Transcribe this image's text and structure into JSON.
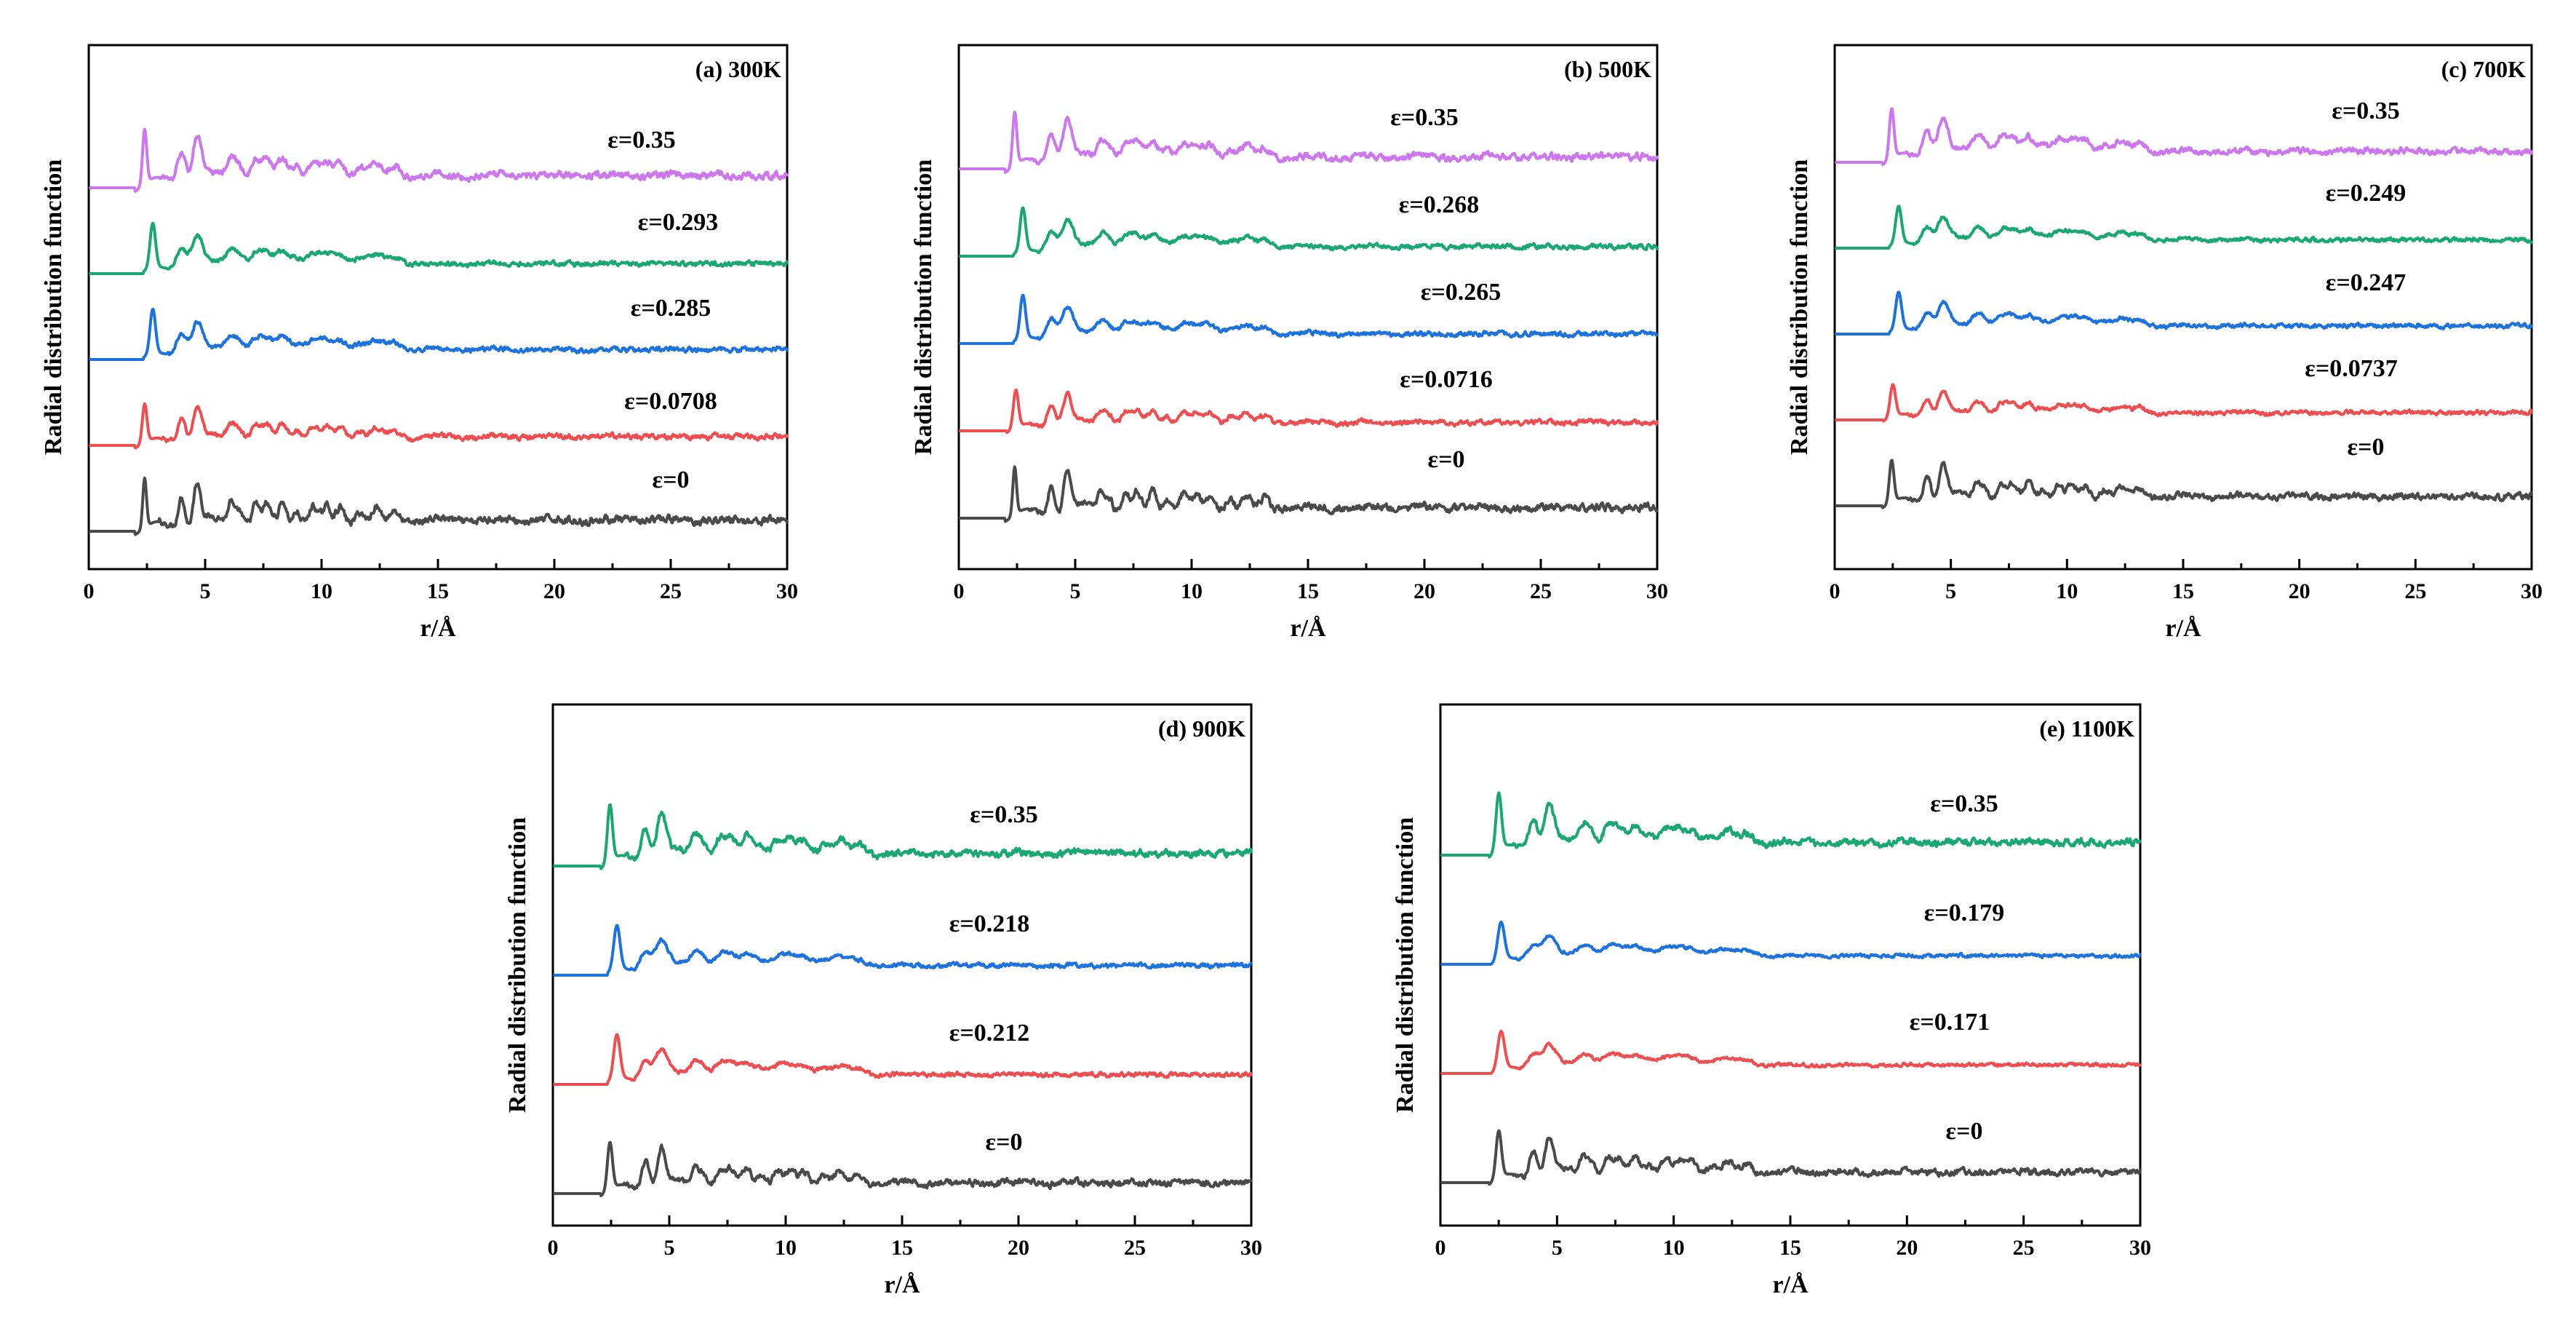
{
  "colors": {
    "purple": "#cc77ee",
    "green": "#19a872",
    "blue": "#1c72de",
    "red": "#ef4d4f",
    "gray": "#4a4a4a"
  },
  "chart_data": [
    {
      "type": "line",
      "id": "a",
      "title": "(a) 300K",
      "xlabel": "r/Å",
      "ylabel": "Radial distribution function",
      "xlim": [
        0,
        30
      ],
      "xticks": [
        "0",
        "5",
        "10",
        "15",
        "20",
        "25",
        "30"
      ],
      "series": [
        {
          "name": "ε=0",
          "color": "#4a4a4a",
          "offset": 0,
          "first_peak_r": 2.4,
          "first_peak_height": 1.0,
          "sharpness": 1.0,
          "disorder": 0.1
        },
        {
          "name": "ε=0.0708",
          "color": "#ef4d4f",
          "offset": 1,
          "first_peak_r": 2.4,
          "first_peak_height": 0.78,
          "sharpness": 0.9,
          "disorder": 0.3
        },
        {
          "name": "ε=0.285",
          "color": "#1c72de",
          "offset": 2,
          "first_peak_r": 2.75,
          "first_peak_height": 0.9,
          "sharpness": 0.8,
          "disorder": 0.6
        },
        {
          "name": "ε=0.293",
          "color": "#19a872",
          "offset": 3,
          "first_peak_r": 2.75,
          "first_peak_height": 0.9,
          "sharpness": 0.8,
          "disorder": 0.6
        },
        {
          "name": "ε=0.35",
          "color": "#cc77ee",
          "offset": 4,
          "first_peak_r": 2.4,
          "first_peak_height": 1.1,
          "sharpness": 0.95,
          "disorder": 0.35
        }
      ]
    },
    {
      "type": "line",
      "id": "b",
      "title": "(b) 500K",
      "xlabel": "r/Å",
      "ylabel": "Radial distribution function",
      "xlim": [
        0,
        30
      ],
      "xticks": [
        "0",
        "5",
        "10",
        "15",
        "20",
        "25",
        "30"
      ],
      "series": [
        {
          "name": "ε=0",
          "color": "#4a4a4a",
          "offset": 0,
          "first_peak_r": 2.4,
          "first_peak_height": 0.95,
          "sharpness": 1.0,
          "disorder": 0.12
        },
        {
          "name": "ε=0.0716",
          "color": "#ef4d4f",
          "offset": 1,
          "first_peak_r": 2.45,
          "first_peak_height": 0.75,
          "sharpness": 0.85,
          "disorder": 0.35
        },
        {
          "name": "ε=0.265",
          "color": "#1c72de",
          "offset": 2,
          "first_peak_r": 2.75,
          "first_peak_height": 0.85,
          "sharpness": 0.8,
          "disorder": 0.6
        },
        {
          "name": "ε=0.268",
          "color": "#19a872",
          "offset": 3,
          "first_peak_r": 2.75,
          "first_peak_height": 0.85,
          "sharpness": 0.8,
          "disorder": 0.6
        },
        {
          "name": "ε=0.35",
          "color": "#cc77ee",
          "offset": 4,
          "first_peak_r": 2.4,
          "first_peak_height": 1.05,
          "sharpness": 0.95,
          "disorder": 0.35
        }
      ]
    },
    {
      "type": "line",
      "id": "c",
      "title": "(c) 700K",
      "xlabel": "r/Å",
      "ylabel": "Radial distribution function",
      "xlim": [
        0,
        30
      ],
      "xticks": [
        "0",
        "5",
        "10",
        "15",
        "20",
        "25",
        "30"
      ],
      "series": [
        {
          "name": "ε=0",
          "color": "#4a4a4a",
          "offset": 0,
          "first_peak_r": 2.45,
          "first_peak_height": 0.85,
          "sharpness": 0.9,
          "disorder": 0.2
        },
        {
          "name": "ε=0.0737",
          "color": "#ef4d4f",
          "offset": 1,
          "first_peak_r": 2.5,
          "first_peak_height": 0.65,
          "sharpness": 0.8,
          "disorder": 0.4
        },
        {
          "name": "ε=0.247",
          "color": "#1c72de",
          "offset": 2,
          "first_peak_r": 2.75,
          "first_peak_height": 0.75,
          "sharpness": 0.75,
          "disorder": 0.6
        },
        {
          "name": "ε=0.249",
          "color": "#19a872",
          "offset": 3,
          "first_peak_r": 2.75,
          "first_peak_height": 0.75,
          "sharpness": 0.75,
          "disorder": 0.6
        },
        {
          "name": "ε=0.35",
          "color": "#cc77ee",
          "offset": 4,
          "first_peak_r": 2.45,
          "first_peak_height": 1.0,
          "sharpness": 0.9,
          "disorder": 0.45
        }
      ]
    },
    {
      "type": "line",
      "id": "d",
      "title": "(d)  900K",
      "xlabel": "r/Å",
      "ylabel": "Radial distribution function",
      "xlim": [
        0,
        30
      ],
      "xticks": [
        "0",
        "5",
        "10",
        "15",
        "20",
        "25",
        "30"
      ],
      "series": [
        {
          "name": "ε=0",
          "color": "#4a4a4a",
          "offset": 0,
          "first_peak_r": 2.45,
          "first_peak_height": 0.75,
          "sharpness": 0.85,
          "disorder": 0.25
        },
        {
          "name": "ε=0.212",
          "color": "#ef4d4f",
          "offset": 1,
          "first_peak_r": 2.75,
          "first_peak_height": 0.7,
          "sharpness": 0.7,
          "disorder": 0.7
        },
        {
          "name": "ε=0.218",
          "color": "#1c72de",
          "offset": 2,
          "first_peak_r": 2.75,
          "first_peak_height": 0.7,
          "sharpness": 0.7,
          "disorder": 0.7
        },
        {
          "name": "ε=0.35",
          "color": "#19a872",
          "offset": 3,
          "first_peak_r": 2.45,
          "first_peak_height": 0.9,
          "sharpness": 0.85,
          "disorder": 0.4
        }
      ]
    },
    {
      "type": "line",
      "id": "e",
      "title": "(e)  1100K",
      "xlabel": "r/Å",
      "ylabel": "Radial distribution function",
      "xlim": [
        0,
        30
      ],
      "xticks": [
        "0",
        "5",
        "10",
        "15",
        "20",
        "25",
        "30"
      ],
      "series": [
        {
          "name": "ε=0",
          "color": "#4a4a4a",
          "offset": 0,
          "first_peak_r": 2.5,
          "first_peak_height": 0.75,
          "sharpness": 0.8,
          "disorder": 0.3
        },
        {
          "name": "ε=0.171",
          "color": "#ef4d4f",
          "offset": 1,
          "first_peak_r": 2.6,
          "first_peak_height": 0.6,
          "sharpness": 0.65,
          "disorder": 0.8
        },
        {
          "name": "ε=0.179",
          "color": "#1c72de",
          "offset": 2,
          "first_peak_r": 2.6,
          "first_peak_height": 0.6,
          "sharpness": 0.65,
          "disorder": 0.8
        },
        {
          "name": "ε=0.35",
          "color": "#19a872",
          "offset": 3,
          "first_peak_r": 2.5,
          "first_peak_height": 0.9,
          "sharpness": 0.8,
          "disorder": 0.45
        }
      ]
    }
  ]
}
